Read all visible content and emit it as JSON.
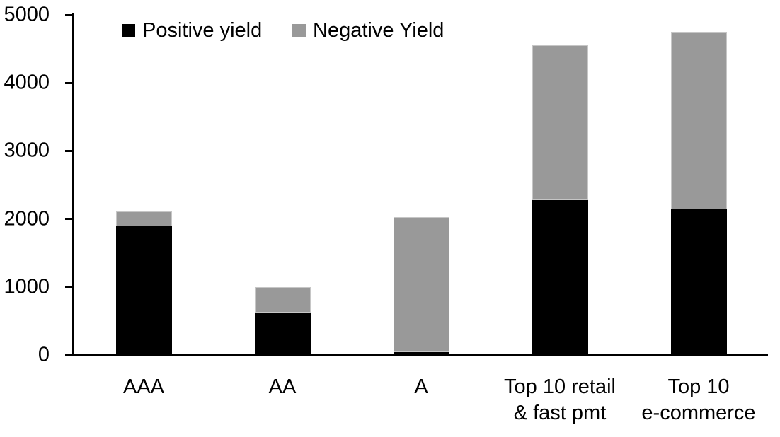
{
  "chart_data": {
    "type": "bar",
    "stacked": true,
    "title": "",
    "xlabel": "",
    "ylabel": "",
    "grid": false,
    "legend_position": "top",
    "ylim": [
      0,
      5000
    ],
    "yticks": [
      0,
      1000,
      2000,
      3000,
      4000,
      5000
    ],
    "categories": [
      "AAA",
      "AA",
      "A",
      "Top 10 retail\n& fast pmt",
      "Top 10\ne-commerce"
    ],
    "series": [
      {
        "name": "Positive yield",
        "color": "#000000",
        "values": [
          1890,
          620,
          40,
          2280,
          2140
        ]
      },
      {
        "name": "Negative Yield",
        "color": "#999999",
        "values": [
          220,
          380,
          1990,
          2270,
          2610
        ]
      }
    ],
    "totals": [
      2110,
      1000,
      2030,
      4550,
      4750
    ]
  },
  "colors": {
    "positive": "#000000",
    "negative": "#999999",
    "axis": "#000000",
    "background": "#ffffff"
  }
}
